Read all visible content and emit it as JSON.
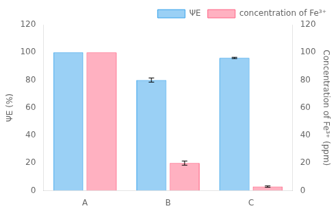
{
  "chart_data": {
    "type": "bar",
    "categories": [
      "A",
      "B",
      "C"
    ],
    "series": [
      {
        "name": "ΨE",
        "values": [
          100,
          80,
          96
        ],
        "errors": [
          0,
          1.5,
          0.5
        ]
      },
      {
        "name": "concentration of Fe³⁺",
        "axis": "y2",
        "values": [
          100,
          20,
          3
        ],
        "errors": [
          0,
          1.5,
          0.5
        ]
      }
    ],
    "ylabel": "ΨE (%)",
    "y2label": "Concentration of Fe³⁺ (ppm)",
    "ylim": [
      0,
      120
    ],
    "yticks": [
      0,
      20,
      40,
      60,
      80,
      100,
      120
    ],
    "y2lim": [
      0,
      120
    ],
    "y2ticks": [
      0,
      20,
      40,
      60,
      80,
      100,
      120
    ],
    "grid": false,
    "legend": "upper right"
  }
}
